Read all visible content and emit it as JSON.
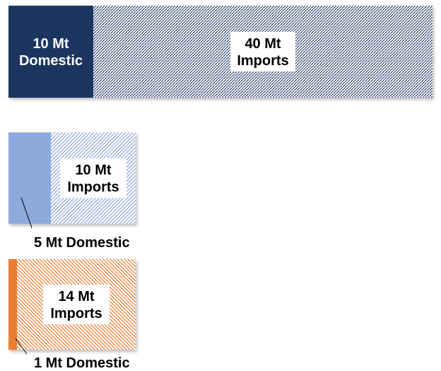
{
  "chart_data": {
    "type": "bar",
    "orientation": "horizontal-stacked",
    "unit": "Mt",
    "bars": [
      {
        "segments": [
          {
            "value": 10,
            "label_value": "10 Mt",
            "label_name": "Domestic",
            "fill": "#1f3460",
            "pattern": "solid",
            "label_color": "#ffffff"
          },
          {
            "value": 40,
            "label_value": "40 Mt",
            "label_name": "Imports",
            "fill": "#1f3460",
            "pattern": "fine-dots",
            "label_color": "#000000"
          }
        ]
      },
      {
        "segments": [
          {
            "value": 5,
            "label_text": "5 Mt Domestic",
            "fill": "#8ea9db",
            "pattern": "solid",
            "label_position": "outside-below"
          },
          {
            "value": 10,
            "label_value": "10 Mt",
            "label_name": "Imports",
            "fill": "#8ea9db",
            "pattern": "diagonal",
            "label_color": "#000000"
          }
        ]
      },
      {
        "segments": [
          {
            "value": 1,
            "label_text": "1 Mt Domestic",
            "fill": "#ed7d31",
            "pattern": "solid",
            "label_position": "outside-below"
          },
          {
            "value": 14,
            "label_value": "14 Mt",
            "label_name": "Imports",
            "fill": "#ed7d31",
            "pattern": "diagonal",
            "label_color": "#000000"
          }
        ]
      }
    ]
  }
}
